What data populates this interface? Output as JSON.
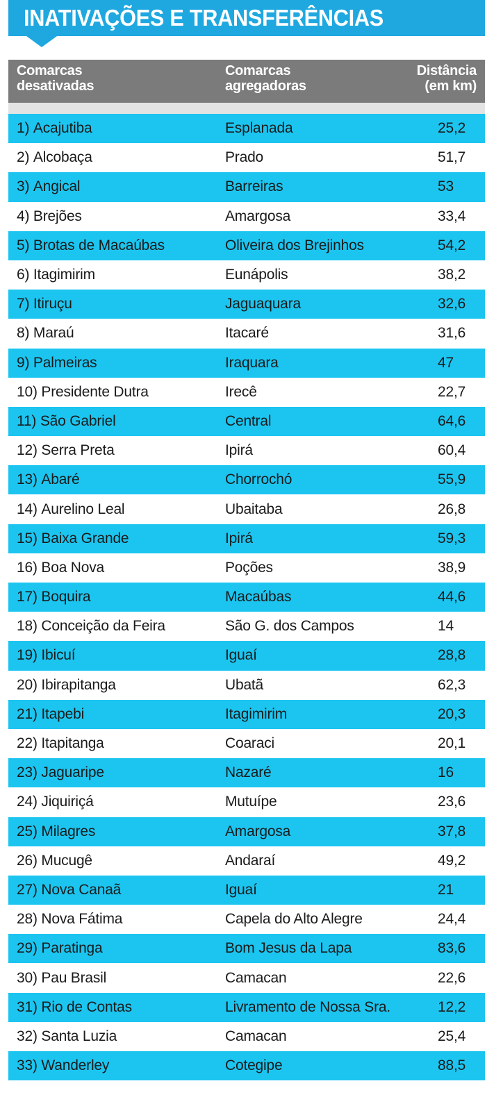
{
  "title": "INATIVAÇÕES E TRANSFERÊNCIAS",
  "header": {
    "col1": [
      "Comarcas",
      "desativadas"
    ],
    "col2": [
      "Comarcas",
      "agregadoras"
    ],
    "col3": [
      "Distância",
      "(em km)"
    ]
  },
  "rows": [
    {
      "n": "1)",
      "desativada": "Acajutiba",
      "agregadora": "Esplanada",
      "km": "25,2"
    },
    {
      "n": "2)",
      "desativada": "Alcobaça",
      "agregadora": "Prado",
      "km": "51,7"
    },
    {
      "n": "3)",
      "desativada": "Angical",
      "agregadora": "Barreiras",
      "km": "53"
    },
    {
      "n": "4)",
      "desativada": "Brejões",
      "agregadora": "Amargosa",
      "km": "33,4"
    },
    {
      "n": "5)",
      "desativada": "Brotas de Macaúbas",
      "agregadora": "Oliveira dos Brejinhos",
      "km": "54,2"
    },
    {
      "n": "6)",
      "desativada": "Itagimirim",
      "agregadora": "Eunápolis",
      "km": "38,2"
    },
    {
      "n": "7)",
      "desativada": "Itiruçu",
      "agregadora": "Jaguaquara",
      "km": "32,6"
    },
    {
      "n": "8)",
      "desativada": "Maraú",
      "agregadora": "Itacaré",
      "km": "31,6"
    },
    {
      "n": "9)",
      "desativada": "Palmeiras",
      "agregadora": "Iraquara",
      "km": "47"
    },
    {
      "n": "10)",
      "desativada": "Presidente Dutra",
      "agregadora": "Irecê",
      "km": "22,7"
    },
    {
      "n": "11)",
      "desativada": "São Gabriel",
      "agregadora": "Central",
      "km": "64,6"
    },
    {
      "n": "12)",
      "desativada": "Serra Preta",
      "agregadora": "Ipirá",
      "km": "60,4"
    },
    {
      "n": "13)",
      "desativada": "Abaré",
      "agregadora": "Chorrochó",
      "km": "55,9"
    },
    {
      "n": "14)",
      "desativada": "Aurelino Leal",
      "agregadora": "Ubaitaba",
      "km": "26,8"
    },
    {
      "n": "15)",
      "desativada": "Baixa Grande",
      "agregadora": "Ipirá",
      "km": "59,3"
    },
    {
      "n": "16)",
      "desativada": "Boa Nova",
      "agregadora": "Poções",
      "km": "38,9"
    },
    {
      "n": "17)",
      "desativada": "Boquira",
      "agregadora": "Macaúbas",
      "km": "44,6"
    },
    {
      "n": "18)",
      "desativada": "Conceição da Feira",
      "agregadora": "São G. dos Campos",
      "km": "14"
    },
    {
      "n": "19)",
      "desativada": "Ibicuí",
      "agregadora": "Iguaí",
      "km": "28,8"
    },
    {
      "n": "20)",
      "desativada": "Ibirapitanga",
      "agregadora": "Ubatã",
      "km": "62,3"
    },
    {
      "n": "21)",
      "desativada": "Itapebi",
      "agregadora": "Itagimirim",
      "km": "20,3"
    },
    {
      "n": "22)",
      "desativada": "Itapitanga",
      "agregadora": "Coaraci",
      "km": "20,1"
    },
    {
      "n": "23)",
      "desativada": "Jaguaripe",
      "agregadora": "Nazaré",
      "km": "16"
    },
    {
      "n": "24)",
      "desativada": "Jiquiriçá",
      "agregadora": "Mutuípe",
      "km": "23,6"
    },
    {
      "n": "25)",
      "desativada": "Milagres",
      "agregadora": "Amargosa",
      "km": "37,8"
    },
    {
      "n": "26)",
      "desativada": "Mucugê",
      "agregadora": "Andaraí",
      "km": "49,2"
    },
    {
      "n": "27)",
      "desativada": "Nova Canaã",
      "agregadora": "Iguaí",
      "km": "21"
    },
    {
      "n": "28)",
      "desativada": "Nova Fátima",
      "agregadora": "Capela do Alto Alegre",
      "km": "24,4"
    },
    {
      "n": "29)",
      "desativada": "Paratinga",
      "agregadora": "Bom Jesus da Lapa",
      "km": "83,6"
    },
    {
      "n": "30)",
      "desativada": "Pau Brasil",
      "agregadora": "Camacan",
      "km": "22,6"
    },
    {
      "n": "31)",
      "desativada": "Rio de Contas",
      "agregadora": "Livramento de Nossa Sra.",
      "km": "12,2"
    },
    {
      "n": "32)",
      "desativada": "Santa Luzia",
      "agregadora": "Camacan",
      "km": "25,4"
    },
    {
      "n": "33)",
      "desativada": "Wanderley",
      "agregadora": "Cotegipe",
      "km": "88,5"
    }
  ]
}
